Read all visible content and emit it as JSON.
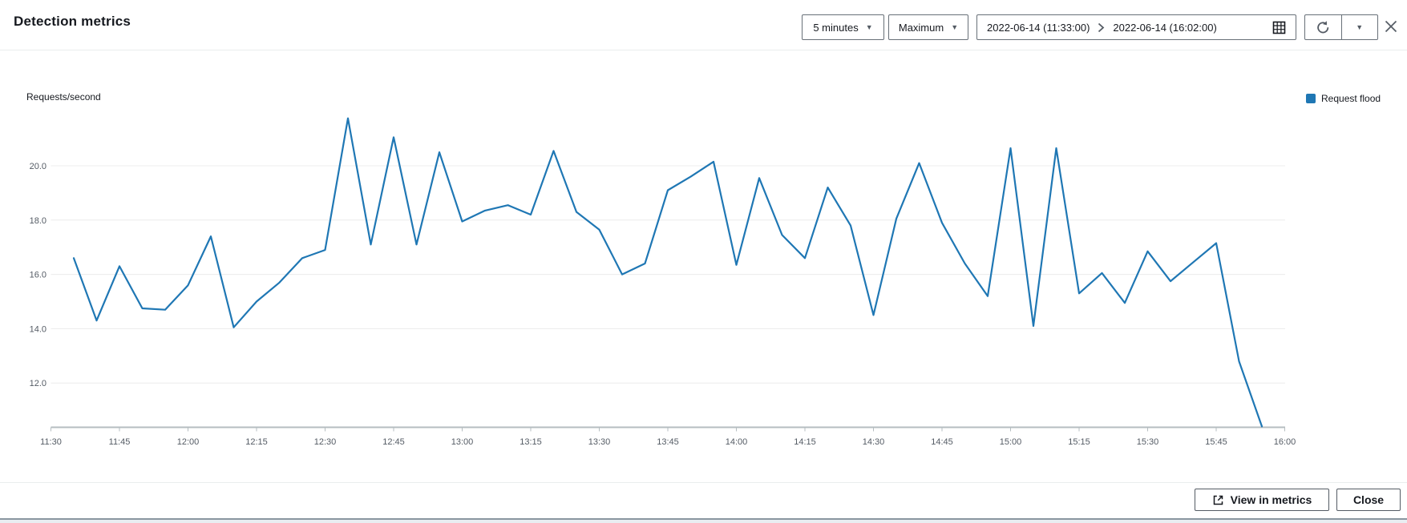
{
  "header": {
    "title": "Detection metrics",
    "period_selector": "5 minutes",
    "statistic_selector": "Maximum",
    "date_range": {
      "start": "2022-06-14 (11:33:00)",
      "end": "2022-06-14 (16:02:00)"
    }
  },
  "footer": {
    "view_in_metrics": "View in metrics",
    "close": "Close"
  },
  "colors": {
    "series_blue": "#1f77b4",
    "grid_gray": "#ececec",
    "axis_gray": "#b5bdc0",
    "tick_text": "#545b64"
  },
  "chart_data": {
    "type": "line",
    "title": "",
    "ylabel": "Requests/second",
    "grid": true,
    "legend": {
      "position": "top-right",
      "entries": [
        {
          "label": "Request flood",
          "color": "#1f77b4"
        }
      ]
    },
    "x_axis_start": "11:30",
    "x_axis_end": "16:00",
    "x_tick_labels": [
      "11:30",
      "11:45",
      "12:00",
      "12:15",
      "12:30",
      "12:45",
      "13:00",
      "13:15",
      "13:30",
      "13:45",
      "14:00",
      "14:15",
      "14:30",
      "14:45",
      "15:00",
      "15:15",
      "15:30",
      "15:45",
      "16:00"
    ],
    "y_tick_labels": [
      "12.0",
      "14.0",
      "16.0",
      "18.0",
      "20.0"
    ],
    "ylim": [
      10.4,
      22.3
    ],
    "series": [
      {
        "name": "Request flood",
        "color": "#1f77b4",
        "x": [
          "11:35",
          "11:40",
          "11:45",
          "11:50",
          "11:55",
          "12:00",
          "12:05",
          "12:10",
          "12:15",
          "12:20",
          "12:25",
          "12:30",
          "12:35",
          "12:40",
          "12:45",
          "12:50",
          "12:55",
          "13:00",
          "13:05",
          "13:10",
          "13:15",
          "13:20",
          "13:25",
          "13:30",
          "13:35",
          "13:40",
          "13:45",
          "13:50",
          "13:55",
          "14:00",
          "14:05",
          "14:10",
          "14:15",
          "14:20",
          "14:25",
          "14:30",
          "14:35",
          "14:40",
          "14:45",
          "14:50",
          "14:55",
          "15:00",
          "15:05",
          "15:10",
          "15:15",
          "15:20",
          "15:25",
          "15:30",
          "15:35",
          "15:40",
          "15:45",
          "15:50",
          "15:55"
        ],
        "values": [
          16.6,
          14.3,
          16.3,
          14.75,
          14.7,
          15.6,
          17.4,
          14.05,
          15.0,
          15.7,
          16.6,
          16.9,
          21.75,
          17.1,
          21.05,
          17.1,
          20.5,
          17.95,
          18.35,
          18.55,
          18.2,
          20.55,
          18.3,
          17.65,
          16.0,
          16.4,
          19.1,
          19.6,
          20.15,
          16.35,
          19.55,
          17.45,
          16.6,
          19.2,
          17.8,
          14.5,
          18.05,
          20.1,
          17.9,
          16.4,
          15.2,
          20.65,
          14.1,
          20.65,
          15.3,
          16.05,
          14.95,
          16.85,
          15.75,
          16.45,
          17.15,
          12.8,
          10.4
        ]
      }
    ]
  }
}
